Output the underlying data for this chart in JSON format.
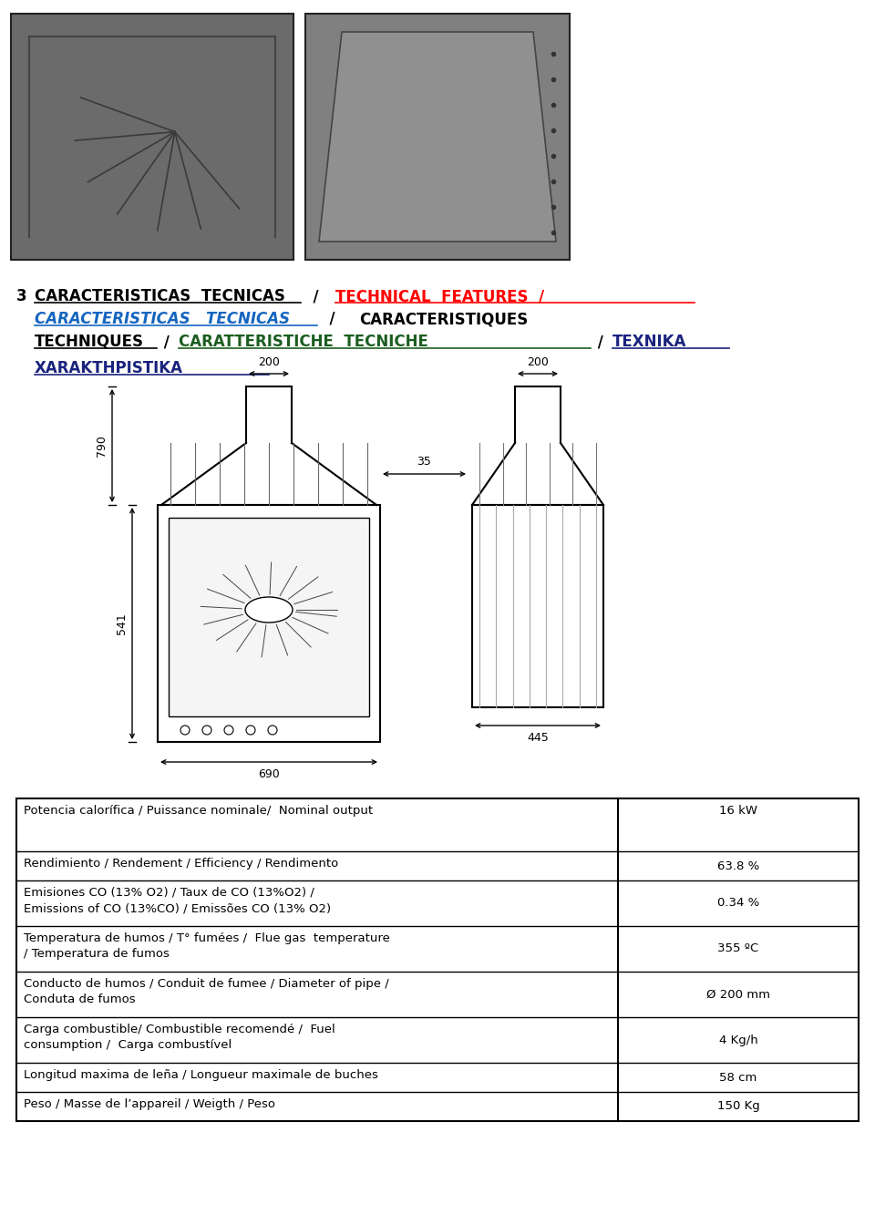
{
  "bg_color": "#ffffff",
  "title_fs": 12.0,
  "table_fs": 9.5,
  "table_rows": [
    {
      "label": "Potencia calorífica / Puissance nominale/  Nominal output",
      "label2": "",
      "value": "16 kW",
      "value_top": true,
      "rh": 58
    },
    {
      "label": "Rendimiento / Rendement / Efficiency / Rendimento",
      "label2": "",
      "value": "63.8 %",
      "value_top": false,
      "rh": 32
    },
    {
      "label": "Emisiones CO (13% O2) / Taux de CO (13%O2) /",
      "label2": "Emissions of CO (13%CO) / Emissões CO (13% O2)",
      "value": "0.34 %",
      "value_top": false,
      "rh": 50
    },
    {
      "label": "Temperatura de humos / T° fumées /  Flue gas  temperature",
      "label2": "/ Temperatura de fumos",
      "value": "355 ºC",
      "value_top": false,
      "rh": 50
    },
    {
      "label": "Conducto de humos / Conduit de fumee / Diameter of pipe /",
      "label2": "Conduta de fumos",
      "value": "Ø 200 mm",
      "value_top": false,
      "rh": 50
    },
    {
      "label": "Carga combustible/ Combustible recomendé /  Fuel",
      "label2": "consumption /  Carga combustível",
      "value": "4 Kg/h",
      "value_top": false,
      "rh": 50
    },
    {
      "label": "Longitud maxima de leña / Longueur maximale de buches",
      "label2": "",
      "value": "58 cm",
      "value_top": false,
      "rh": 32
    },
    {
      "label": "Peso / Masse de l’appareil / Weigth / Peso",
      "label2": "",
      "value": "150 Kg",
      "value_top": false,
      "rh": 32
    }
  ]
}
